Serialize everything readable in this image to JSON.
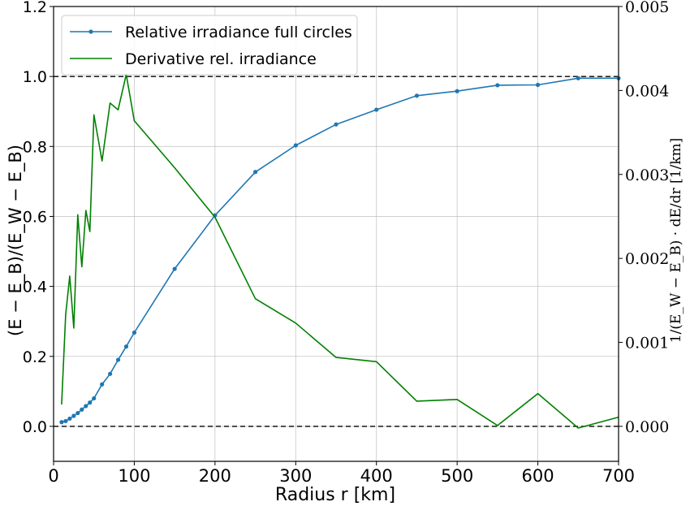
{
  "chart_data": {
    "type": "line",
    "xlabel": "Radius r [km]",
    "ylabel_left": "(E − E_B)/(E_W − E_B)",
    "ylabel_right": "1/(E_W − E_B) · dE/dr [1/km]",
    "xlim": [
      0,
      700
    ],
    "ylim_left": [
      -0.1,
      1.2
    ],
    "ylim_right": [
      -0.000416667,
      0.005
    ],
    "xticks": [
      0,
      100,
      200,
      300,
      400,
      500,
      600,
      700
    ],
    "yticks_left": [
      0.0,
      0.2,
      0.4,
      0.6,
      0.8,
      1.0,
      1.2
    ],
    "yticks_right": [
      0.0,
      0.001,
      0.002,
      0.003,
      0.004,
      0.005
    ],
    "xtick_labels": [
      "0",
      "100",
      "200",
      "300",
      "400",
      "500",
      "600",
      "700"
    ],
    "ytick_labels_left": [
      "0.0",
      "0.2",
      "0.4",
      "0.6",
      "0.8",
      "1.0",
      "1.2"
    ],
    "ytick_labels_right": [
      "0.000",
      "0.001",
      "0.002",
      "0.003",
      "0.004",
      "0.005"
    ],
    "grid": true,
    "legend_position": "top-left",
    "reference_lines": [
      0.0,
      1.0
    ],
    "series": [
      {
        "name": "Relative irradiance full circles",
        "axis": "left",
        "color": "#1f77b4",
        "marker": "dot",
        "x": [
          10,
          15,
          20,
          25,
          30,
          35,
          40,
          45,
          50,
          60,
          70,
          80,
          90,
          100,
          150,
          200,
          250,
          300,
          350,
          400,
          450,
          500,
          550,
          600,
          650,
          700
        ],
        "y": [
          0.012,
          0.015,
          0.022,
          0.03,
          0.038,
          0.048,
          0.058,
          0.068,
          0.08,
          0.12,
          0.15,
          0.19,
          0.228,
          0.268,
          0.45,
          0.603,
          0.727,
          0.803,
          0.863,
          0.905,
          0.945,
          0.958,
          0.975,
          0.976,
          0.995,
          0.995
        ]
      },
      {
        "name": "Derivative rel. irradiance",
        "axis": "right",
        "color": "#008000",
        "marker": "none",
        "x": [
          10,
          15,
          20,
          25,
          30,
          35,
          40,
          45,
          50,
          60,
          70,
          80,
          90,
          100,
          150,
          200,
          250,
          300,
          350,
          400,
          450,
          500,
          550,
          600,
          650,
          700
        ],
        "y": [
          0.00026,
          0.00133,
          0.00179,
          0.00117,
          0.00252,
          0.0019,
          0.00257,
          0.00232,
          0.00371,
          0.00316,
          0.00385,
          0.00377,
          0.00419,
          0.00364,
          0.00308,
          0.00249,
          0.00152,
          0.00123,
          0.00082,
          0.00077,
          0.0003,
          0.00032,
          1e-05,
          0.00039,
          -2e-05,
          0.00011
        ]
      }
    ]
  }
}
